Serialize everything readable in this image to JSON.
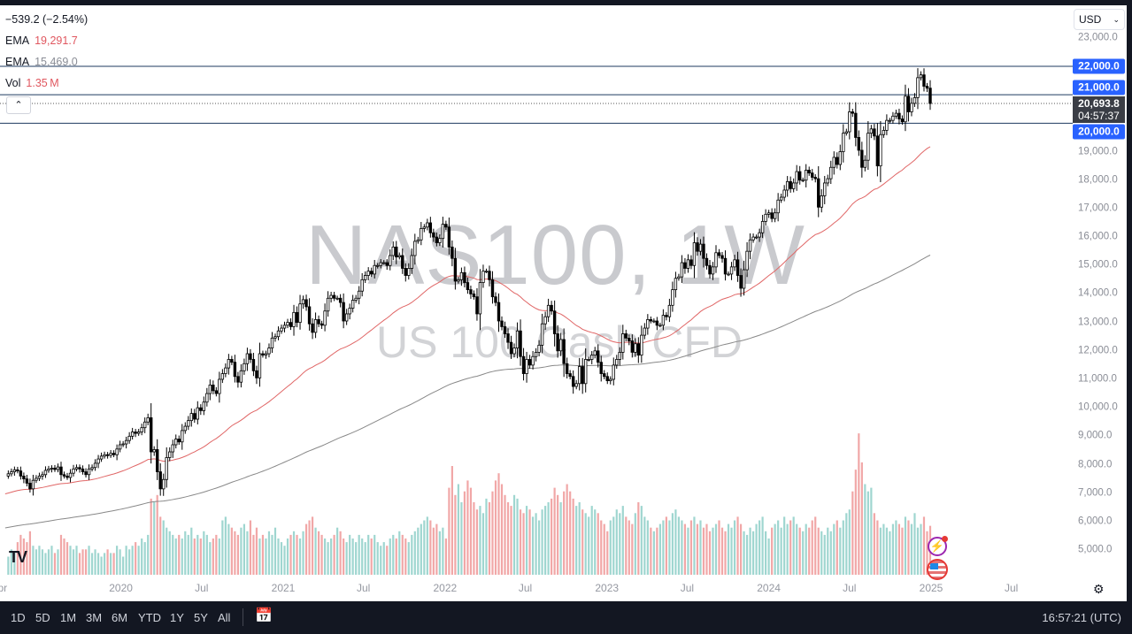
{
  "header": {
    "change": "−539.2 (−2.54%)",
    "ema1_label": "EMA",
    "ema1_value": "19,291.7",
    "ema2_label": "EMA",
    "ema2_value": "15,469.0",
    "vol_label": "Vol",
    "vol_value": "1.35 M",
    "collapse_icon": "chevron-up-icon"
  },
  "watermark": {
    "symbol": "NAS100, 1W",
    "description": "US 100 Cash CFD"
  },
  "currency": {
    "selected": "USD"
  },
  "price_axis": {
    "ticks": [
      "23,000.0",
      "19,000.0",
      "18,000.0",
      "17,000.0",
      "16,000.0",
      "15,000.0",
      "14,000.0",
      "13,000.0",
      "12,000.0",
      "11,000.0",
      "10,000.0",
      "9,000.0",
      "8,000.0",
      "7,000.0",
      "6,000.0",
      "5,000.0"
    ],
    "tick_values": [
      23000,
      19000,
      18000,
      17000,
      16000,
      15000,
      14000,
      13000,
      12000,
      11000,
      10000,
      9000,
      8000,
      7000,
      6000,
      5000
    ],
    "levels": [
      {
        "label": "22,000.0",
        "value": 22000
      },
      {
        "label": "21,000.0",
        "value": 21000
      },
      {
        "label": "20,000.0",
        "value": 20000
      }
    ],
    "current_price": "20,693.8",
    "current_value": 20693.8,
    "countdown": "04:57:37"
  },
  "time_axis": {
    "labels": [
      {
        "label": "Apr",
        "date": "2019-04-01"
      },
      {
        "label": "2020",
        "date": "2020-01-01"
      },
      {
        "label": "Jul",
        "date": "2020-07-01"
      },
      {
        "label": "2021",
        "date": "2021-01-01"
      },
      {
        "label": "Jul",
        "date": "2021-07-01"
      },
      {
        "label": "2022",
        "date": "2022-01-01"
      },
      {
        "label": "Jul",
        "date": "2022-07-01"
      },
      {
        "label": "2023",
        "date": "2023-01-01"
      },
      {
        "label": "Jul",
        "date": "2023-07-01"
      },
      {
        "label": "2024",
        "date": "2024-01-01"
      },
      {
        "label": "Jul",
        "date": "2024-07-01"
      },
      {
        "label": "2025",
        "date": "2025-01-01"
      },
      {
        "label": "Jul",
        "date": "2025-07-01"
      }
    ]
  },
  "colors": {
    "level_line": "#1e3a5f",
    "ema_fast": "#e06666",
    "ema_slow": "#888888",
    "up_volume": "#9fd6d0",
    "down_volume": "#f1a7a7",
    "badge": "#2962ff"
  },
  "chart_data": {
    "type": "candlestick",
    "interval": "1W",
    "last_bar_date": "2024-12-30",
    "last_open": 21233.0,
    "ema_labels": [
      "EMA",
      "EMA"
    ],
    "ema_last_values": [
      19291.7,
      15469.0
    ],
    "close": [
      7600,
      7680,
      7750,
      7820,
      7780,
      7600,
      7500,
      7350,
      7150,
      7450,
      7520,
      7600,
      7650,
      7800,
      7850,
      7880,
      7830,
      7920,
      7650,
      7600,
      7550,
      7700,
      7850,
      7900,
      7850,
      7750,
      7650,
      7850,
      7900,
      8050,
      8200,
      8300,
      8350,
      8330,
      8400,
      8350,
      8550,
      8700,
      8730,
      8850,
      9000,
      9150,
      9100,
      9150,
      9300,
      9500,
      9650,
      8450,
      8530,
      7750,
      7150,
      7480,
      8250,
      8450,
      8700,
      8900,
      8800,
      9200,
      9350,
      9550,
      9800,
      9600,
      10000,
      9900,
      10200,
      10500,
      10800,
      10600,
      10500,
      11000,
      11200,
      11400,
      11700,
      11600,
      11100,
      10900,
      11300,
      11550,
      11900,
      11700,
      11300,
      11050,
      11900,
      11850,
      11900,
      12100,
      12450,
      12500,
      12700,
      12800,
      12900,
      13000,
      12850,
      13350,
      13000,
      13650,
      13800,
      13550,
      12950,
      12650,
      13100,
      12950,
      12900,
      13400,
      13850,
      13950,
      13850,
      13850,
      13700,
      13050,
      13300,
      13500,
      13780,
      13850,
      14100,
      14500,
      14650,
      14800,
      14700,
      15000,
      15000,
      15100,
      15100,
      15000,
      15350,
      15650,
      15300,
      15350,
      14900,
      14650,
      14900,
      15350,
      15850,
      15900,
      16300,
      16350,
      16500,
      16150,
      16000,
      15800,
      15950,
      16450,
      16350,
      15650,
      15250,
      14450,
      14500,
      14750,
      14400,
      14150,
      14000,
      13900,
      13300,
      14400,
      14800,
      14800,
      14500,
      13900,
      13700,
      13050,
      12850,
      12600,
      12300,
      11900,
      12100,
      12700,
      11800,
      11200,
      11700,
      11500,
      11800,
      11950,
      12200,
      12950,
      13200,
      13600,
      13400,
      12600,
      12000,
      12400,
      11550,
      11200,
      11100,
      10750,
      10850,
      11450,
      10850,
      11700,
      11700,
      11850,
      12000,
      11600,
      11200,
      11100,
      10950,
      11000,
      11500,
      11700,
      11950,
      12600,
      12450,
      12350,
      11950,
      12250,
      11850,
      12550,
      12800,
      13100,
      13050,
      13050,
      12900,
      12900,
      13250,
      13200,
      13600,
      14150,
      14550,
      14600,
      15100,
      14900,
      15200,
      15000,
      15800,
      15500,
      15750,
      15250,
      15000,
      14700,
      14950,
      15450,
      15350,
      15250,
      14700,
      14700,
      14950,
      15200,
      14650,
      14200,
      14850,
      15500,
      15900,
      16000,
      16000,
      16150,
      16550,
      16800,
      16850,
      16650,
      16850,
      17300,
      17400,
      17650,
      17950,
      17700,
      17900,
      18300,
      18000,
      18000,
      18350,
      18250,
      18100,
      18050,
      17050,
      17450,
      17900,
      18050,
      18450,
      18800,
      18550,
      19000,
      19650,
      19700,
      20400,
      20350,
      19500,
      19050,
      18450,
      18700,
      19650,
      19800,
      19550,
      18500,
      19600,
      19750,
      20100,
      20100,
      20250,
      20350,
      20150,
      20050,
      20950,
      20400,
      20700,
      20900,
      21600,
      21700,
      21300,
      21233,
      20693.8
    ],
    "volume_m": [
      0.6,
      0.5,
      0.7,
      0.6,
      0.9,
      1.1,
      1.0,
      0.9,
      1.2,
      0.8,
      0.7,
      0.8,
      0.7,
      0.6,
      0.7,
      0.8,
      0.6,
      0.7,
      1.1,
      1.0,
      0.9,
      0.8,
      0.7,
      0.8,
      0.6,
      0.7,
      0.7,
      0.8,
      0.6,
      0.7,
      0.6,
      0.5,
      0.6,
      0.7,
      0.6,
      0.6,
      0.8,
      0.7,
      0.5,
      0.8,
      0.7,
      0.8,
      0.9,
      0.8,
      1.0,
      0.9,
      1.1,
      2.1,
      2.0,
      2.2,
      1.6,
      1.5,
      1.3,
      1.2,
      1.1,
      1.0,
      1.1,
      1.0,
      1.2,
      1.1,
      1.3,
      1.0,
      1.1,
      1.0,
      1.2,
      1.1,
      0.9,
      1.0,
      1.1,
      1.0,
      1.5,
      1.6,
      1.4,
      1.3,
      1.2,
      1.1,
      1.3,
      1.4,
      1.2,
      1.5,
      1.1,
      1.3,
      1.0,
      1.1,
      1.0,
      1.2,
      1.1,
      1.3,
      1.0,
      0.9,
      0.8,
      1.0,
      1.1,
      1.2,
      1.1,
      1.0,
      1.2,
      1.4,
      1.5,
      1.6,
      1.3,
      1.2,
      1.1,
      1.0,
      0.9,
      1.0,
      1.1,
      1.3,
      1.2,
      1.0,
      0.9,
      1.1,
      1.0,
      0.9,
      1.1,
      1.0,
      0.9,
      1.1,
      1.0,
      1.1,
      0.9,
      0.8,
      0.9,
      0.8,
      1.0,
      1.1,
      1.0,
      1.2,
      1.1,
      1.0,
      0.9,
      1.1,
      1.2,
      1.3,
      1.4,
      1.5,
      1.6,
      1.5,
      1.3,
      1.4,
      1.2,
      1.3,
      1.0,
      2.4,
      3.0,
      2.2,
      2.5,
      2.0,
      2.3,
      2.6,
      2.4,
      2.0,
      1.8,
      1.9,
      1.7,
      2.1,
      2.0,
      2.3,
      2.6,
      2.8,
      2.5,
      2.2,
      2.0,
      1.9,
      2.2,
      2.1,
      1.8,
      1.7,
      1.9,
      1.8,
      1.6,
      1.7,
      1.5,
      1.8,
      1.9,
      2.0,
      2.1,
      2.4,
      2.2,
      2.0,
      2.3,
      2.5,
      2.3,
      2.1,
      1.9,
      2.0,
      1.8,
      1.7,
      1.6,
      1.9,
      1.8,
      1.7,
      1.5,
      1.4,
      1.2,
      1.5,
      1.6,
      1.8,
      1.7,
      1.9,
      1.6,
      1.5,
      1.4,
      1.7,
      2.0,
      1.9,
      1.6,
      1.5,
      1.3,
      1.2,
      1.3,
      1.4,
      1.5,
      1.6,
      1.5,
      1.7,
      1.8,
      1.6,
      1.5,
      1.4,
      1.3,
      1.5,
      1.6,
      1.4,
      1.5,
      1.3,
      1.4,
      1.2,
      1.3,
      1.4,
      1.5,
      1.3,
      1.2,
      1.4,
      1.3,
      1.5,
      1.6,
      1.4,
      1.2,
      1.1,
      1.3,
      1.2,
      1.4,
      1.5,
      1.6,
      1.2,
      1.0,
      1.3,
      1.4,
      1.5,
      1.3,
      1.6,
      1.4,
      1.5,
      1.6,
      1.4,
      1.3,
      1.2,
      1.4,
      1.3,
      1.5,
      1.6,
      1.3,
      1.2,
      1.1,
      1.3,
      1.2,
      1.4,
      1.5,
      1.3,
      1.5,
      1.7,
      1.8,
      2.3,
      2.9,
      3.9,
      3.1,
      2.5,
      2.3,
      2.4,
      1.7,
      1.5,
      1.3,
      1.4,
      1.3,
      1.2,
      1.4,
      1.5,
      1.4,
      1.3,
      1.6,
      1.5,
      1.4,
      1.7,
      1.3,
      1.4,
      1.6,
      1.2,
      1.35
    ]
  },
  "bottom_bar": {
    "ranges": [
      "1D",
      "5D",
      "1M",
      "3M",
      "6M",
      "YTD",
      "1Y",
      "5Y",
      "All"
    ],
    "goto_icon": "calendar-goto-icon",
    "clock": "16:57:21 (UTC)"
  },
  "icons": {
    "logo": "tradingview-logo",
    "events": [
      "lightning-event-icon",
      "us-flag-event-icon"
    ],
    "settings": "gear-icon"
  }
}
